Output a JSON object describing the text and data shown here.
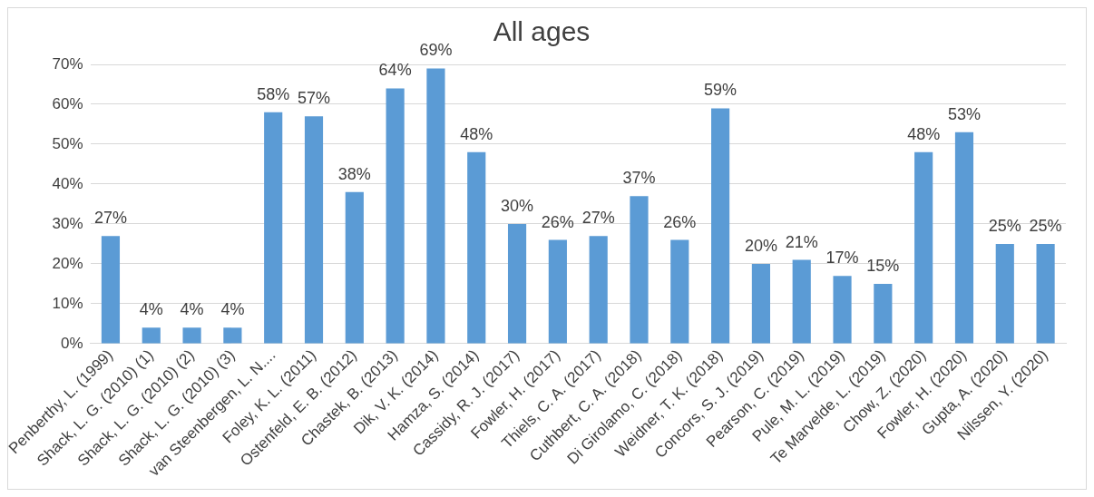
{
  "chart_data": {
    "type": "bar",
    "title": "All ages",
    "categories": [
      "Penberthy, L. (1999)",
      "Shack, L. G. (2010) (1)",
      "Shack, L. G. (2010) (2)",
      "Shack, L. G. (2010) (3)",
      "van Steenbergen, L. N....",
      "Foley, K. L. (2011)",
      "Ostenfeld, E. B. (2012)",
      "Chastek, B. (2013)",
      "Dik, V. K. (2014)",
      "Hamza, S. (2014)",
      "Cassidy, R. J. (2017)",
      "Fowler, H. (2017)",
      "Thiels, C. A. (2017)",
      "Cuthbert, C. A. (2018)",
      "Di Girolamo, C. (2018)",
      "Weidner, T. K. (2018)",
      "Concors, S. J. (2019)",
      "Pearson, C. (2019)",
      "Pule, M. L. (2019)",
      "Te Marvelde, L. (2019)",
      "Chow, Z. (2020)",
      "Fowler, H. (2020)",
      "Gupta, A. (2020)",
      "Nilssen, Y. (2020)"
    ],
    "values": [
      27,
      4,
      4,
      4,
      58,
      57,
      38,
      64,
      69,
      48,
      30,
      26,
      27,
      37,
      26,
      59,
      20,
      21,
      17,
      15,
      48,
      53,
      25,
      25
    ],
    "value_labels": [
      "27%",
      "4%",
      "4%",
      "4%",
      "58%",
      "57%",
      "38%",
      "64%",
      "69%",
      "48%",
      "30%",
      "26%",
      "27%",
      "37%",
      "26%",
      "59%",
      "20%",
      "21%",
      "17%",
      "15%",
      "48%",
      "53%",
      "25%",
      "25%"
    ],
    "color": "#5b9bd5",
    "ylim": [
      0,
      70
    ],
    "yticks": [
      {
        "value": 0,
        "label": "0%"
      },
      {
        "value": 10,
        "label": "10%"
      },
      {
        "value": 20,
        "label": "20%"
      },
      {
        "value": 30,
        "label": "30%"
      },
      {
        "value": 40,
        "label": "40%"
      },
      {
        "value": 50,
        "label": "50%"
      },
      {
        "value": 60,
        "label": "60%"
      },
      {
        "value": 70,
        "label": "70%"
      }
    ],
    "grid": "y"
  }
}
